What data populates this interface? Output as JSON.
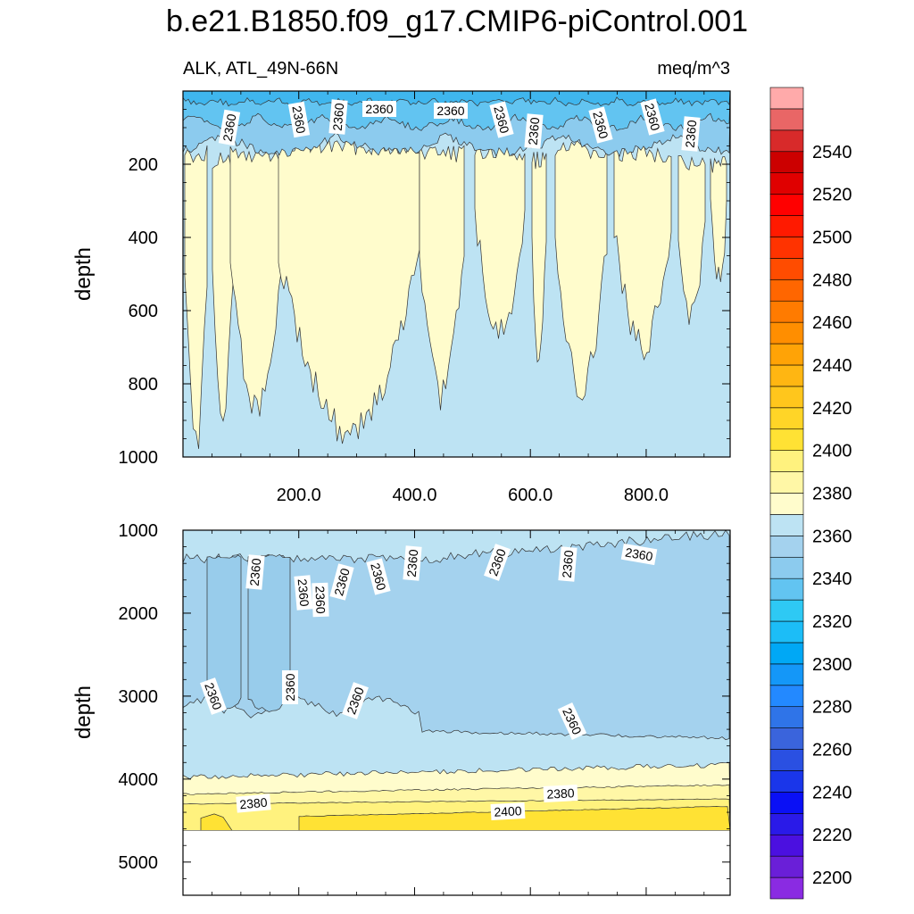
{
  "title": "b.e21.B1850.f09_g17.CMIP6-piControl.001",
  "chart_data": [
    {
      "type": "contour",
      "panel": "upper",
      "variable_label": "ALK, ATL_49N-66N",
      "units": "meq/m^3",
      "xlabel": "",
      "ylabel": "depth",
      "xlim": [
        0,
        945
      ],
      "ylim": [
        1000,
        0
      ],
      "x_ticks": [
        200,
        400,
        600,
        800
      ],
      "x_tick_labels": [
        "200.0",
        "400.0",
        "600.0",
        "800.0"
      ],
      "y_ticks": [
        200,
        400,
        600,
        800,
        1000
      ],
      "y_tick_labels": [
        "200",
        "400",
        "600",
        "800",
        "1000"
      ],
      "contour_labels": [
        "2360",
        "2360",
        "2360",
        "2360",
        "2360",
        "2360",
        "2360",
        "2360",
        "2360",
        "2360"
      ],
      "fill_levels": [
        {
          "level": "2340-2360",
          "color": "#bde3f3"
        },
        {
          "level": "2360-2380",
          "color": "#fffccc"
        },
        {
          "level": "surface 2300-2340",
          "color": "#62c4f1"
        }
      ]
    },
    {
      "type": "contour",
      "panel": "lower",
      "ylabel": "depth",
      "xlim": [
        0,
        945
      ],
      "ylim": [
        5400,
        1000
      ],
      "y_ticks": [
        1000,
        2000,
        3000,
        4000,
        5000
      ],
      "y_tick_labels": [
        "1000",
        "2000",
        "3000",
        "4000",
        "5000"
      ],
      "contour_labels": [
        "2360",
        "2360",
        "2360",
        "2360",
        "2360",
        "2360",
        "2360",
        "2360",
        "2360",
        "2360",
        "2360",
        "2360",
        "2360",
        "2380",
        "2380",
        "2400"
      ],
      "seafloor_depth": 4620
    }
  ],
  "colorbar": {
    "levels": [
      2200,
      2210,
      2220,
      2230,
      2240,
      2250,
      2260,
      2270,
      2280,
      2290,
      2300,
      2310,
      2320,
      2330,
      2340,
      2350,
      2360,
      2370,
      2380,
      2390,
      2400,
      2410,
      2420,
      2430,
      2440,
      2450,
      2460,
      2470,
      2480,
      2490,
      2500,
      2510,
      2520,
      2530,
      2540,
      2550
    ],
    "labels": [
      "2200",
      "2220",
      "2240",
      "2260",
      "2280",
      "2300",
      "2320",
      "2340",
      "2360",
      "2380",
      "2400",
      "2420",
      "2440",
      "2460",
      "2480",
      "2500",
      "2520",
      "2540"
    ],
    "colors": [
      "#8a2be2",
      "#6a1fd8",
      "#4b10e0",
      "#2a1ae8",
      "#0a10f5",
      "#1a36ea",
      "#2a50e2",
      "#3a64dc",
      "#2f74e8",
      "#2389ff",
      "#1497f8",
      "#00a8f5",
      "#1cbdf7",
      "#2ec9f4",
      "#62c4f1",
      "#8ccbee",
      "#a4d2ee",
      "#bde3f3",
      "#fffccc",
      "#fff7a6",
      "#fff27e",
      "#ffe234",
      "#ffd527",
      "#ffc61c",
      "#ffb612",
      "#ffa306",
      "#ff8e00",
      "#ff7b00",
      "#ff6600",
      "#ff4c00",
      "#ff3300",
      "#ff1a00",
      "#ff0000",
      "#e00000",
      "#cc0000",
      "#d82a2a",
      "#e96666",
      "#ffaaaa"
    ]
  }
}
